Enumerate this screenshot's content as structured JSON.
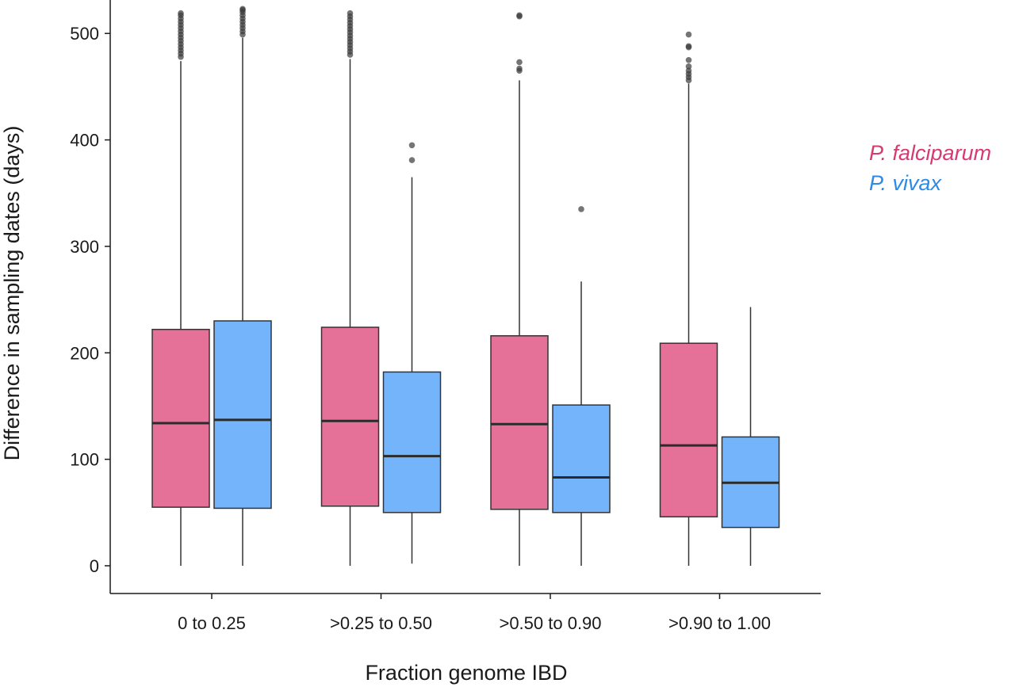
{
  "chart_data": {
    "type": "box",
    "xlabel": "Fraction genome IBD",
    "ylabel": "Difference in sampling dates (days)",
    "ylim": [
      -15,
      530
    ],
    "yticks": [
      0,
      100,
      200,
      300,
      400,
      500
    ],
    "grid": false,
    "legend_placement": "right",
    "categories": [
      {
        "label": "0 to 0.25",
        "x": 0
      },
      {
        "label": ">0.25 to 0.50",
        "x": 1
      },
      {
        "label": ">0.50 to 0.90",
        "x": 2
      },
      {
        "label": ">0.90 to 1.00",
        "x": 3
      }
    ],
    "series": [
      {
        "name": "P. falciparum",
        "color": "#e57098",
        "label_color": "#d63a72",
        "boxes": [
          {
            "category": "0 to 0.25",
            "whisker_low": 0,
            "q1": 55,
            "median": 134,
            "q3": 222,
            "whisker_high": 474,
            "outliers": [
              478,
              481,
              484,
              487,
              490,
              493,
              496,
              499,
              502,
              505,
              508,
              511,
              514,
              517,
              519
            ]
          },
          {
            "category": ">0.25 to 0.50",
            "whisker_low": 0,
            "q1": 56,
            "median": 136,
            "q3": 224,
            "whisker_high": 476,
            "outliers": [
              480,
              483,
              486,
              489,
              492,
              495,
              498,
              501,
              504,
              507,
              510,
              513,
              516,
              519
            ]
          },
          {
            "category": ">0.50 to 0.90",
            "whisker_low": 0,
            "q1": 53,
            "median": 133,
            "q3": 216,
            "whisker_high": 456,
            "outliers": [
              465,
              467,
              473,
              516,
              517
            ]
          },
          {
            "category": ">0.90 to 1.00",
            "whisker_low": 0,
            "q1": 46,
            "median": 113,
            "q3": 209,
            "whisker_high": 453,
            "outliers": [
              456,
              459,
              462,
              465,
              469,
              475,
              487,
              488,
              499
            ]
          }
        ]
      },
      {
        "name": "P. vivax",
        "color": "#74b4fa",
        "label_color": "#2b8be6",
        "boxes": [
          {
            "category": "0 to 0.25",
            "whisker_low": 0,
            "q1": 54,
            "median": 137,
            "q3": 230,
            "whisker_high": 496,
            "outliers": [
              499,
              502,
              505,
              508,
              511,
              514,
              517,
              520,
              522,
              523
            ]
          },
          {
            "category": ">0.25 to 0.50",
            "whisker_low": 2,
            "q1": 50,
            "median": 103,
            "q3": 182,
            "whisker_high": 365,
            "outliers": [
              381,
              395
            ]
          },
          {
            "category": ">0.50 to 0.90",
            "whisker_low": 0,
            "q1": 50,
            "median": 83,
            "q3": 151,
            "whisker_high": 267,
            "outliers": [
              335
            ]
          },
          {
            "category": ">0.90 to 1.00",
            "whisker_low": 0,
            "q1": 36,
            "median": 78,
            "q3": 121,
            "whisker_high": 243,
            "outliers": []
          }
        ]
      }
    ]
  }
}
